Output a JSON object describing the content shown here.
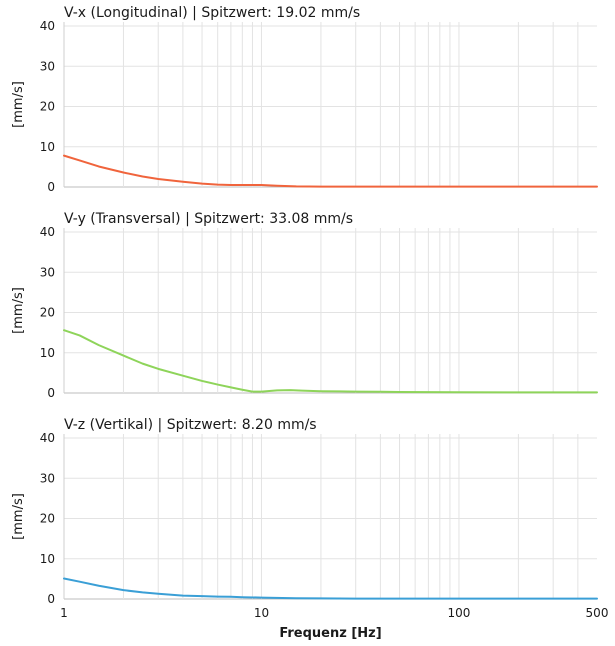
{
  "chart_data": [
    {
      "type": "line",
      "title": "V-x (Longitudinal) | Spitzwert: 19.02 mm/s",
      "ylabel": "[mm/s]",
      "xlabel": "",
      "xscale": "log",
      "xlim": [
        1,
        500
      ],
      "ylim": [
        0,
        41
      ],
      "yticks": [
        0,
        10,
        20,
        30,
        40
      ],
      "grid": true,
      "color": "#f0643c",
      "x": [
        1,
        1.2,
        1.5,
        2,
        2.5,
        3,
        4,
        5,
        6,
        7,
        8,
        10,
        12,
        15,
        20,
        30,
        50,
        100,
        200,
        300,
        500
      ],
      "values": [
        7.8,
        6.6,
        5.1,
        3.6,
        2.6,
        2.0,
        1.3,
        0.85,
        0.6,
        0.5,
        0.5,
        0.5,
        0.3,
        0.15,
        0.1,
        0.1,
        0.1,
        0.1,
        0.1,
        0.1,
        0.1
      ]
    },
    {
      "type": "line",
      "title": "V-y (Transversal) | Spitzwert: 33.08 mm/s",
      "ylabel": "[mm/s]",
      "xlabel": "",
      "xscale": "log",
      "xlim": [
        1,
        500
      ],
      "ylim": [
        0,
        41
      ],
      "yticks": [
        0,
        10,
        20,
        30,
        40
      ],
      "grid": true,
      "color": "#8ed45a",
      "x": [
        1,
        1.2,
        1.5,
        2,
        2.5,
        3,
        4,
        5,
        6,
        7,
        8,
        9,
        10,
        12,
        14,
        16,
        20,
        25,
        30,
        40,
        50,
        100,
        200,
        300,
        500
      ],
      "values": [
        15.6,
        14.3,
        11.9,
        9.3,
        7.3,
        6.0,
        4.3,
        3.0,
        2.1,
        1.4,
        0.8,
        0.35,
        0.35,
        0.65,
        0.7,
        0.6,
        0.45,
        0.4,
        0.35,
        0.3,
        0.25,
        0.2,
        0.15,
        0.15,
        0.15
      ]
    },
    {
      "type": "line",
      "title": "V-z (Vertikal) | Spitzwert: 8.20 mm/s",
      "ylabel": "[mm/s]",
      "xlabel": "Frequenz [Hz]",
      "xscale": "log",
      "xlim": [
        1,
        500
      ],
      "ylim": [
        0,
        41
      ],
      "yticks": [
        0,
        10,
        20,
        30,
        40
      ],
      "xticks": [
        1,
        10,
        100,
        500
      ],
      "xtick_labels": [
        "1",
        "10",
        "100",
        "500"
      ],
      "grid": true,
      "color": "#3a9fd6",
      "x": [
        1,
        1.2,
        1.5,
        2,
        2.5,
        3,
        4,
        5,
        6,
        7,
        8,
        10,
        15,
        20,
        30,
        50,
        100,
        200,
        300,
        500
      ],
      "values": [
        5.1,
        4.3,
        3.3,
        2.2,
        1.65,
        1.3,
        0.85,
        0.7,
        0.6,
        0.55,
        0.45,
        0.35,
        0.2,
        0.15,
        0.1,
        0.1,
        0.08,
        0.08,
        0.08,
        0.08
      ]
    }
  ]
}
